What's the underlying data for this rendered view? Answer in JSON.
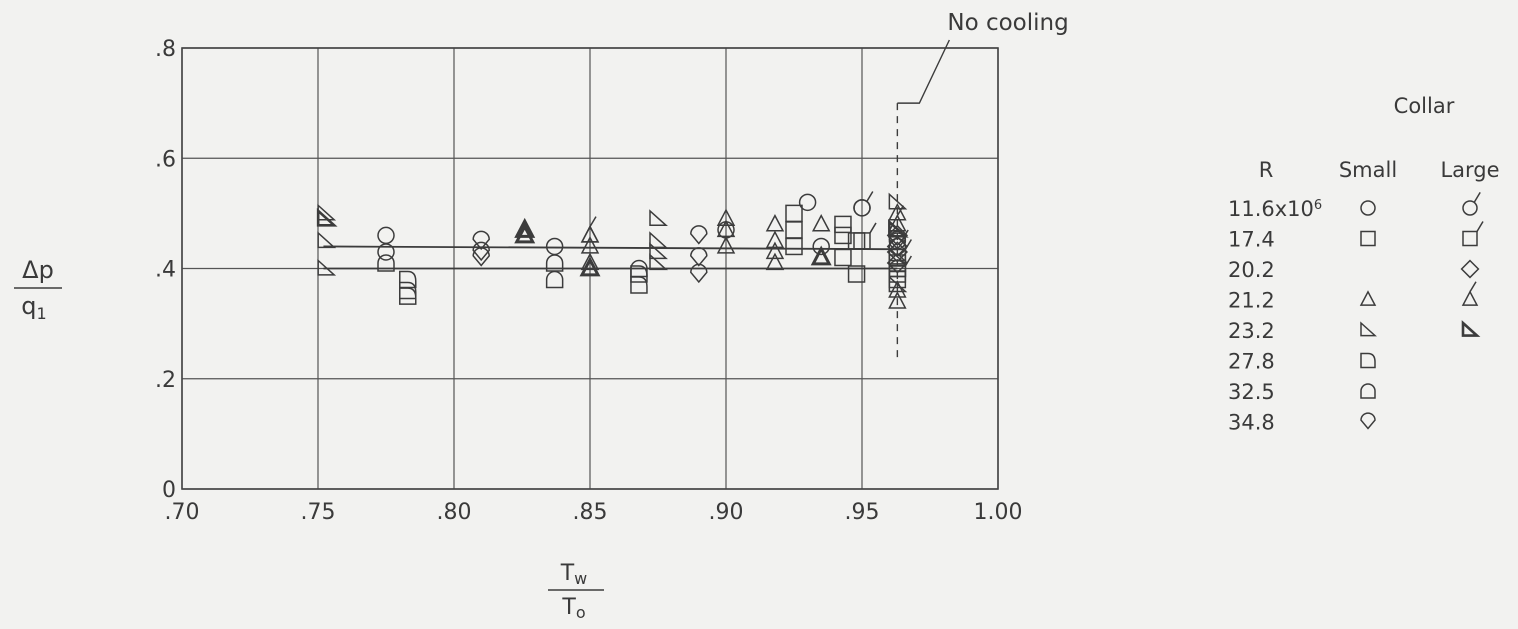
{
  "chart_data": {
    "type": "scatter",
    "title": "",
    "y_axis_label": {
      "numerator": "Δp",
      "denominator": "q",
      "denominator_subscript": "1"
    },
    "x_axis_label": {
      "numerator": "T",
      "numerator_subscript": "w",
      "denominator": "T",
      "denominator_subscript": "o"
    },
    "xlim": [
      0.7,
      1.0
    ],
    "ylim": [
      0,
      0.8
    ],
    "x_ticks": [
      0.7,
      0.75,
      0.8,
      0.85,
      0.9,
      0.95,
      1.0
    ],
    "x_tick_labels": [
      ".70",
      ".75",
      ".80",
      ".85",
      ".90",
      ".95",
      "1.00"
    ],
    "y_ticks": [
      0,
      0.2,
      0.4,
      0.6,
      0.8
    ],
    "y_tick_labels": [
      "0",
      ".2",
      ".4",
      ".6",
      ".8"
    ],
    "grid": true,
    "annotation": {
      "text": "No cooling",
      "x": 0.963
    },
    "no_cooling_line": {
      "x": 0.963,
      "y_range": [
        0.23,
        0.7
      ]
    },
    "reference_lines": [
      {
        "x": [
          0.752,
          0.963
        ],
        "y": [
          0.44,
          0.435
        ]
      },
      {
        "x": [
          0.752,
          0.963
        ],
        "y": [
          0.4,
          0.4
        ]
      }
    ],
    "legend": {
      "placement": "right",
      "title": "Collar",
      "header_r": "R",
      "header_small": "Small",
      "header_large": "Large",
      "rows": [
        {
          "r": "11.6x10",
          "sup": "6",
          "small": "circle",
          "large": "circle-flag"
        },
        {
          "r": "17.4",
          "small": "square",
          "large": "square-flag"
        },
        {
          "r": "20.2",
          "small": "",
          "large": "diamond"
        },
        {
          "r": "21.2",
          "small": "triangle",
          "large": "triangle-flag"
        },
        {
          "r": "23.2",
          "small": "right-triangle",
          "large": "right-triangle-flag"
        },
        {
          "r": "27.8",
          "small": "d-shape"
        },
        {
          "r": "32.5",
          "small": "arch"
        },
        {
          "r": "34.8",
          "small": "diamond-round"
        }
      ]
    },
    "series": [
      {
        "name": "11.6x10^6 Small",
        "shape": "circle",
        "x": [
          0.775,
          0.775,
          0.837,
          0.9,
          0.93,
          0.935,
          0.95,
          0.963
        ],
        "y": [
          0.46,
          0.43,
          0.44,
          0.47,
          0.52,
          0.44,
          0.51,
          0.45
        ]
      },
      {
        "name": "11.6x10^6 Large",
        "shape": "circle-flag",
        "x": [
          0.95,
          0.963
        ],
        "y": [
          0.51,
          0.44
        ]
      },
      {
        "name": "17.4 Small",
        "shape": "square",
        "x": [
          0.925,
          0.925,
          0.925,
          0.943,
          0.943,
          0.943,
          0.948,
          0.948,
          0.963,
          0.963,
          0.963
        ],
        "y": [
          0.5,
          0.47,
          0.44,
          0.48,
          0.46,
          0.42,
          0.45,
          0.39,
          0.4,
          0.38,
          0.41
        ]
      },
      {
        "name": "17.4 Large",
        "shape": "square-flag",
        "x": [
          0.95,
          0.963,
          0.963
        ],
        "y": [
          0.45,
          0.42,
          0.39
        ]
      },
      {
        "name": "20.2 Large",
        "shape": "diamond",
        "x": [
          0.963,
          0.963,
          0.963,
          0.963
        ],
        "y": [
          0.46,
          0.44,
          0.43,
          0.41
        ]
      },
      {
        "name": "21.2 Small",
        "shape": "triangle",
        "x": [
          0.85,
          0.85,
          0.85,
          0.9,
          0.9,
          0.9,
          0.918,
          0.918,
          0.918,
          0.918,
          0.935,
          0.935,
          0.963,
          0.963,
          0.963
        ],
        "y": [
          0.46,
          0.44,
          0.41,
          0.49,
          0.47,
          0.44,
          0.48,
          0.45,
          0.43,
          0.41,
          0.48,
          0.42,
          0.5,
          0.36,
          0.34
        ]
      },
      {
        "name": "21.2 Large",
        "shape": "triangle-flag",
        "x": [
          0.85,
          0.963
        ],
        "y": [
          0.46,
          0.48
        ]
      },
      {
        "name": "21.2 Small (bold)",
        "shape": "triangle-bold",
        "x": [
          0.826,
          0.826,
          0.85,
          0.935
        ],
        "y": [
          0.47,
          0.46,
          0.4,
          0.42
        ]
      },
      {
        "name": "23.2 Small",
        "shape": "right-triangle",
        "x": [
          0.753,
          0.753,
          0.753,
          0.875,
          0.875,
          0.875,
          0.875,
          0.963,
          0.963,
          0.963
        ],
        "y": [
          0.5,
          0.45,
          0.4,
          0.49,
          0.45,
          0.43,
          0.41,
          0.52,
          0.42,
          0.37
        ]
      },
      {
        "name": "23.2 Large",
        "shape": "right-triangle-flag",
        "x": [
          0.753,
          0.963
        ],
        "y": [
          0.49,
          0.47
        ]
      },
      {
        "name": "27.8 Small",
        "shape": "d-shape",
        "x": [
          0.783,
          0.783,
          0.783,
          0.868,
          0.868
        ],
        "y": [
          0.38,
          0.36,
          0.35,
          0.39,
          0.37
        ]
      },
      {
        "name": "32.5 Small",
        "shape": "arch",
        "x": [
          0.775,
          0.837,
          0.837,
          0.868,
          0.963
        ],
        "y": [
          0.41,
          0.41,
          0.38,
          0.4,
          0.4
        ]
      },
      {
        "name": "34.8 Small",
        "shape": "diamond-round",
        "x": [
          0.81,
          0.81,
          0.81,
          0.89,
          0.89,
          0.89,
          0.963
        ],
        "y": [
          0.45,
          0.43,
          0.42,
          0.46,
          0.42,
          0.39,
          0.45
        ]
      }
    ]
  }
}
